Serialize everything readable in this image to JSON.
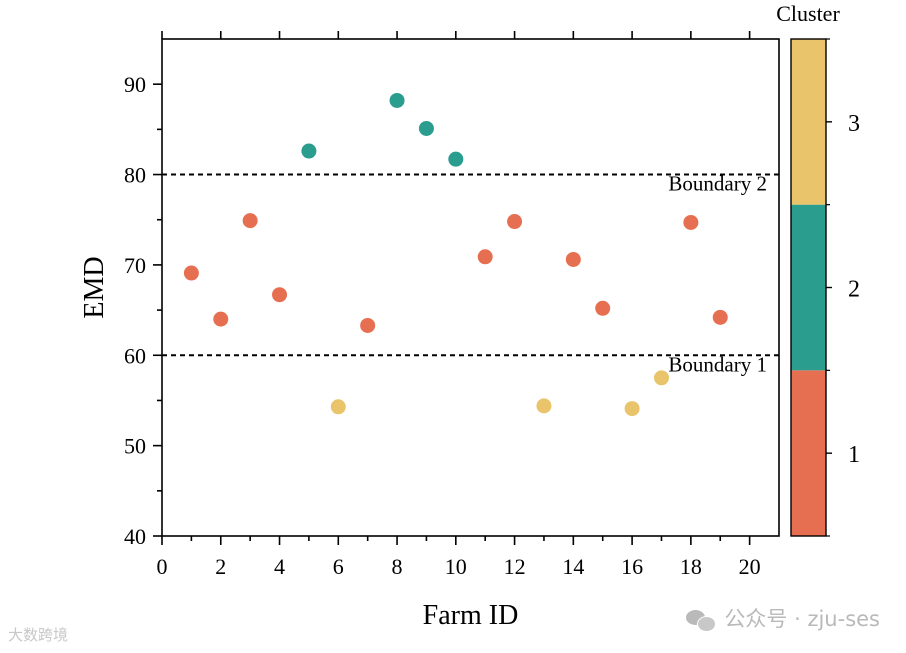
{
  "chart_data": {
    "type": "scatter",
    "xlabel": "Farm ID",
    "ylabel": "EMD",
    "xlim": [
      0,
      21
    ],
    "ylim": [
      40,
      95
    ],
    "xticks": [
      "0",
      "2",
      "4",
      "6",
      "8",
      "10",
      "12",
      "14",
      "16",
      "18",
      "20"
    ],
    "yticks": [
      "40",
      "50",
      "60",
      "70",
      "80",
      "90"
    ],
    "points": [
      {
        "x": 1,
        "y": 69.1,
        "cluster": 1
      },
      {
        "x": 2,
        "y": 64.0,
        "cluster": 1
      },
      {
        "x": 3,
        "y": 74.9,
        "cluster": 1
      },
      {
        "x": 4,
        "y": 66.7,
        "cluster": 1
      },
      {
        "x": 5,
        "y": 82.6,
        "cluster": 2
      },
      {
        "x": 6,
        "y": 54.3,
        "cluster": 3
      },
      {
        "x": 7,
        "y": 63.3,
        "cluster": 1
      },
      {
        "x": 8,
        "y": 88.2,
        "cluster": 2
      },
      {
        "x": 9,
        "y": 85.1,
        "cluster": 2
      },
      {
        "x": 10,
        "y": 81.7,
        "cluster": 2
      },
      {
        "x": 11,
        "y": 70.9,
        "cluster": 1
      },
      {
        "x": 12,
        "y": 74.8,
        "cluster": 1
      },
      {
        "x": 13,
        "y": 54.4,
        "cluster": 3
      },
      {
        "x": 14,
        "y": 70.6,
        "cluster": 1
      },
      {
        "x": 15,
        "y": 65.2,
        "cluster": 1
      },
      {
        "x": 16,
        "y": 54.1,
        "cluster": 3
      },
      {
        "x": 17,
        "y": 57.5,
        "cluster": 3
      },
      {
        "x": 18,
        "y": 74.7,
        "cluster": 1
      },
      {
        "x": 19,
        "y": 64.2,
        "cluster": 1
      }
    ],
    "boundaries": [
      {
        "y": 60,
        "label": "Boundary 1"
      },
      {
        "y": 80,
        "label": "Boundary 2"
      }
    ],
    "colorbar": {
      "title": "Cluster",
      "levels": [
        {
          "value": 1,
          "label": "1",
          "color": "#E76F51"
        },
        {
          "value": 2,
          "label": "2",
          "color": "#2A9D8F"
        },
        {
          "value": 3,
          "label": "3",
          "color": "#E9C46A"
        }
      ]
    }
  },
  "watermarks": {
    "right": "公众号 · zju-ses",
    "left": "大数跨境"
  }
}
